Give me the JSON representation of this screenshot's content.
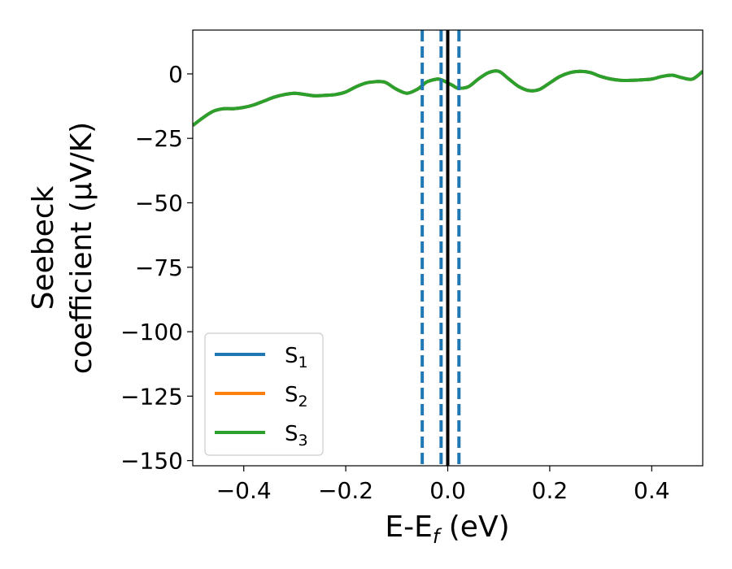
{
  "chart_data": {
    "type": "line",
    "xlabel": {
      "main": "E-E",
      "sub": "f",
      "unit": " (eV)"
    },
    "ylabel": {
      "line1": "Seebeck",
      "line2": "coefficient  (μV/K)"
    },
    "xlim": [
      -0.5,
      0.5
    ],
    "ylim": [
      -152,
      17
    ],
    "xticks": [
      -0.4,
      -0.2,
      0.0,
      0.2,
      0.4
    ],
    "xtick_labels": [
      "−0.4",
      "−0.2",
      "0.0",
      "0.2",
      "0.4"
    ],
    "yticks": [
      0,
      -25,
      -50,
      -75,
      -100,
      -125,
      -150
    ],
    "ytick_labels": [
      "0",
      "−25",
      "−50",
      "−75",
      "−100",
      "−125",
      "−150"
    ],
    "grid": false,
    "legend_position": "lower-left",
    "x": [
      -0.5,
      -0.48,
      -0.46,
      -0.44,
      -0.42,
      -0.4,
      -0.38,
      -0.36,
      -0.34,
      -0.32,
      -0.3,
      -0.28,
      -0.26,
      -0.24,
      -0.22,
      -0.2,
      -0.18,
      -0.16,
      -0.14,
      -0.13,
      -0.12,
      -0.1,
      -0.08,
      -0.06,
      -0.05,
      -0.04,
      -0.02,
      -0.01,
      0.0,
      0.01,
      0.02,
      0.04,
      0.06,
      0.08,
      0.1,
      0.12,
      0.14,
      0.16,
      0.18,
      0.2,
      0.22,
      0.24,
      0.26,
      0.28,
      0.3,
      0.32,
      0.34,
      0.36,
      0.38,
      0.4,
      0.42,
      0.44,
      0.46,
      0.48,
      0.5
    ],
    "series": [
      {
        "name": "S",
        "sub": "1",
        "color": "#1f77b4",
        "values": [
          -20,
          -17,
          -14.5,
          -13.5,
          -13.5,
          -13,
          -12,
          -10.5,
          -9,
          -8,
          -7.5,
          -8,
          -8.5,
          -8.3,
          -8,
          -7,
          -5,
          -3.5,
          -3,
          -3,
          -3.5,
          -6,
          -7.5,
          -6,
          -4.5,
          -3,
          -2,
          -2.5,
          -3.5,
          -4.5,
          -5.5,
          -5,
          -2,
          0.5,
          1,
          -2,
          -5,
          -6.5,
          -6,
          -3.5,
          -1,
          0.5,
          1,
          0.5,
          -1,
          -2,
          -2.5,
          -2.5,
          -2.3,
          -2,
          -1,
          -0.5,
          -1.5,
          -2,
          1
        ]
      },
      {
        "name": "S",
        "sub": "2",
        "color": "#ff7f0e",
        "values": [
          -20,
          -17,
          -14.5,
          -13.5,
          -13.5,
          -13,
          -12,
          -10.5,
          -9,
          -8,
          -7.5,
          -8,
          -8.5,
          -8.3,
          -8,
          -7,
          -5,
          -3.5,
          -3,
          -3,
          -3.5,
          -6,
          -7.5,
          -6,
          -4.5,
          -3,
          -2,
          -2.5,
          -3.5,
          -4.5,
          -5.5,
          -5,
          -2,
          0.5,
          1,
          -2,
          -5,
          -6.5,
          -6,
          -3.5,
          -1,
          0.5,
          1,
          0.5,
          -1,
          -2,
          -2.5,
          -2.5,
          -2.3,
          -2,
          -1,
          -0.5,
          -1.5,
          -2,
          1
        ]
      },
      {
        "name": "S",
        "sub": "3",
        "color": "#2ca02c",
        "values": [
          -20,
          -17,
          -14.5,
          -13.5,
          -13.5,
          -13,
          -12,
          -10.5,
          -9,
          -8,
          -7.5,
          -8,
          -8.5,
          -8.3,
          -8,
          -7,
          -5,
          -3.5,
          -3,
          -3,
          -3.5,
          -6,
          -7.5,
          -6,
          -4.5,
          -3,
          -2,
          -2.5,
          -3.5,
          -4.5,
          -5.5,
          -5,
          -2,
          0.5,
          1,
          -2,
          -5,
          -6.5,
          -6,
          -3.5,
          -1,
          0.5,
          1,
          0.5,
          -1,
          -2,
          -2.5,
          -2.5,
          -2.3,
          -2,
          -1,
          -0.5,
          -1.5,
          -2,
          1
        ]
      }
    ],
    "vlines": [
      {
        "x": -0.05,
        "style": "dashed",
        "color": "#1f77b4"
      },
      {
        "x": -0.013,
        "style": "dashed",
        "color": "#1f77b4"
      },
      {
        "x": 0.0,
        "style": "solid",
        "color": "#000000"
      },
      {
        "x": 0.022,
        "style": "dashed",
        "color": "#1f77b4"
      }
    ]
  }
}
